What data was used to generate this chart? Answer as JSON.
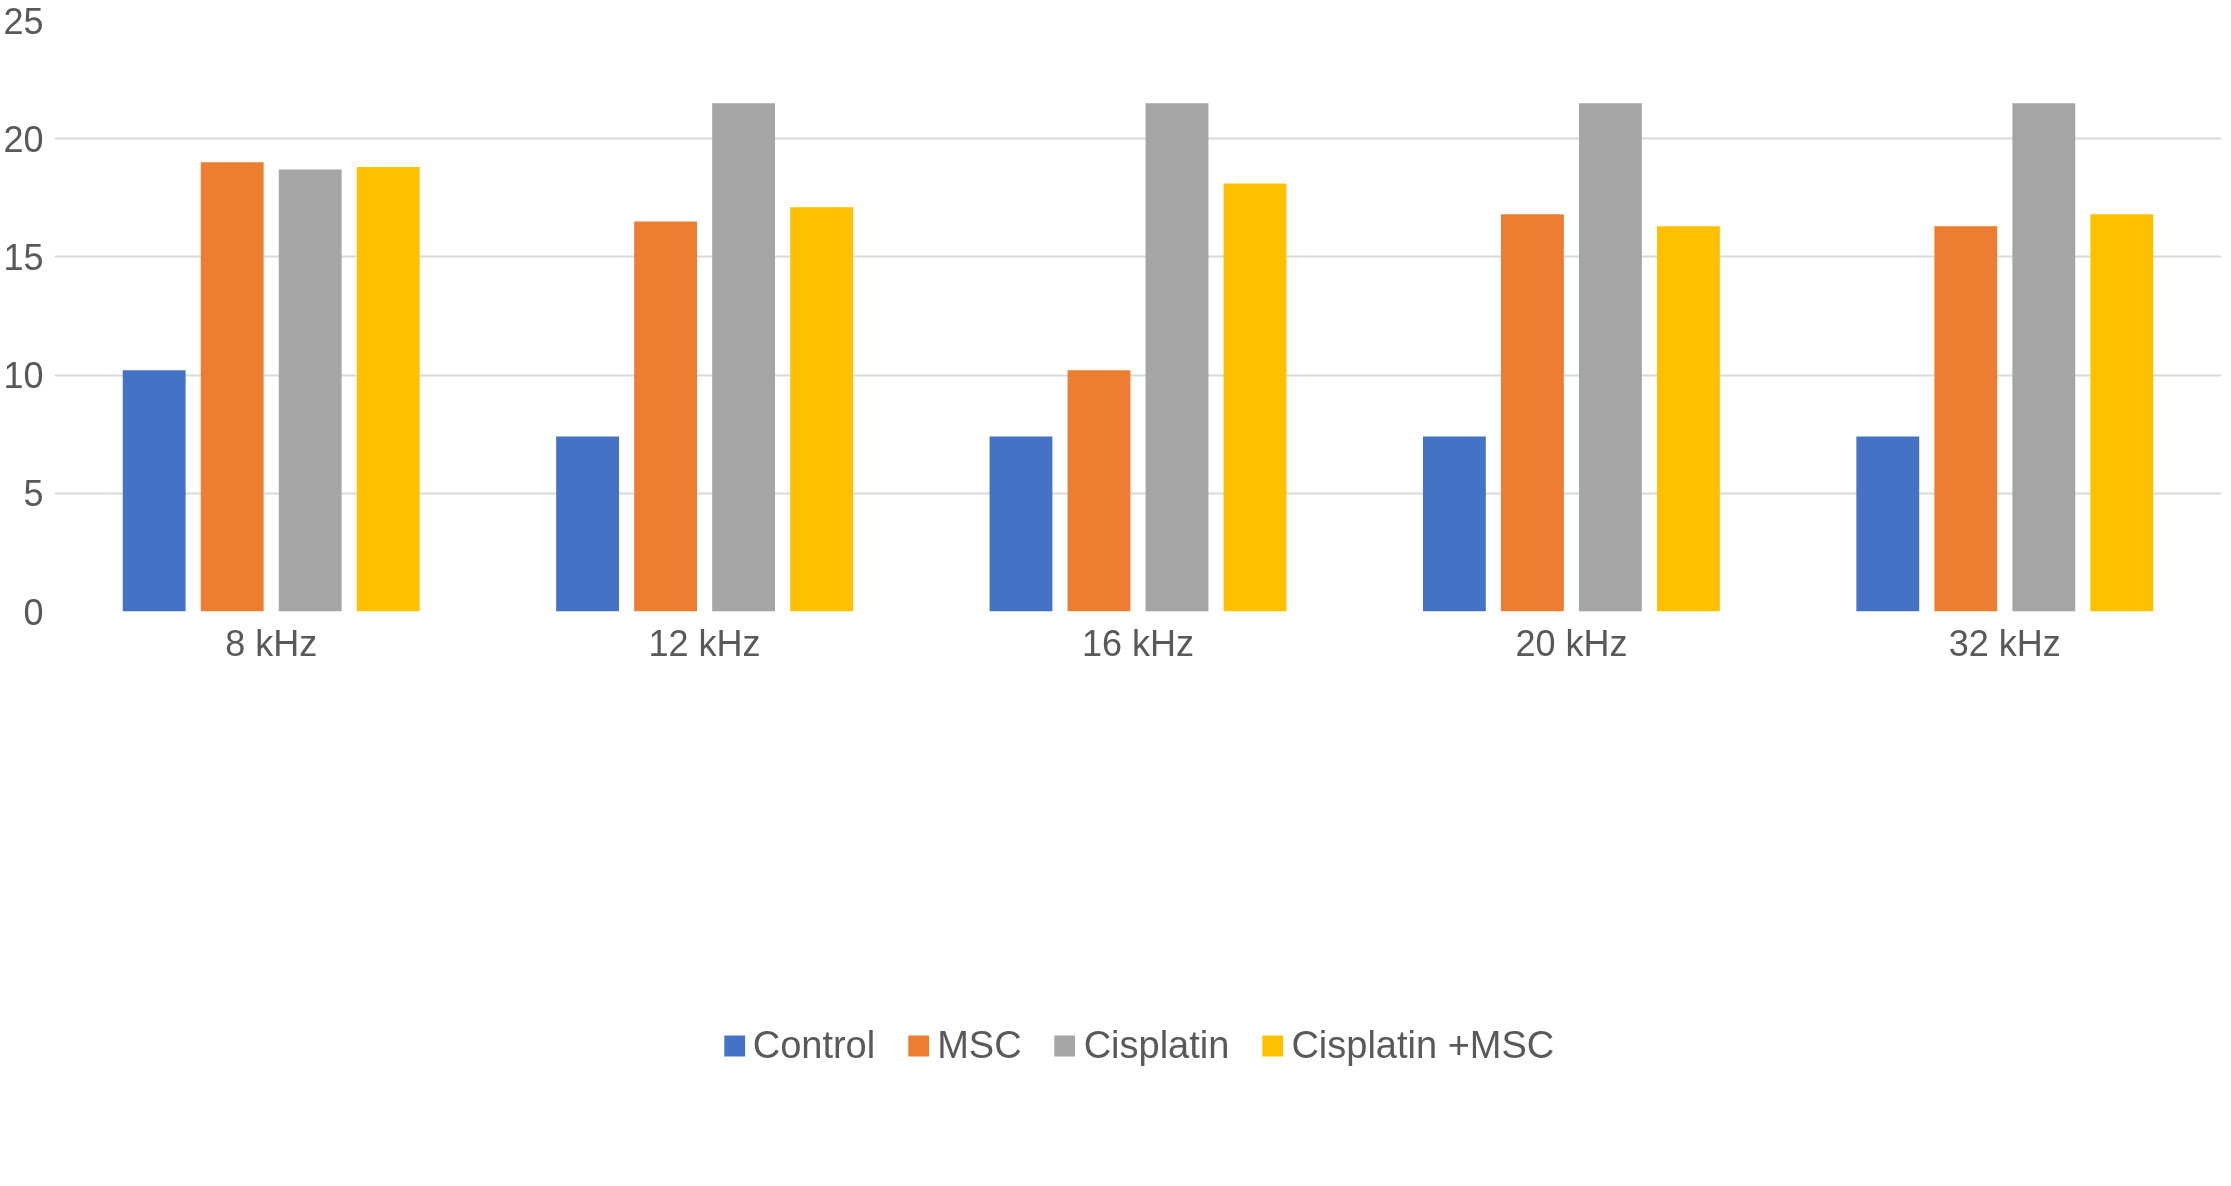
{
  "chart_data": {
    "type": "bar",
    "categories": [
      "8 kHz",
      "12 kHz",
      "16 kHz",
      "20 kHz",
      "32 kHz"
    ],
    "series": [
      {
        "name": "Control",
        "color": "#4472c4",
        "values": [
          10.2,
          7.4,
          7.4,
          7.4,
          7.4
        ]
      },
      {
        "name": "MSC",
        "color": "#ed7d31",
        "values": [
          19.0,
          16.5,
          10.2,
          16.8,
          16.3
        ]
      },
      {
        "name": "Cisplatin",
        "color": "#a5a5a5",
        "values": [
          18.7,
          21.5,
          21.5,
          21.5,
          21.5
        ]
      },
      {
        "name": "Cisplatin +MSC",
        "color": "#ffc000",
        "values": [
          18.8,
          17.1,
          18.1,
          16.3,
          16.8
        ]
      }
    ],
    "ylim": [
      0,
      25
    ],
    "yticks": [
      0,
      5,
      10,
      15,
      20,
      25
    ],
    "grid": "y",
    "legend": "bottom"
  }
}
